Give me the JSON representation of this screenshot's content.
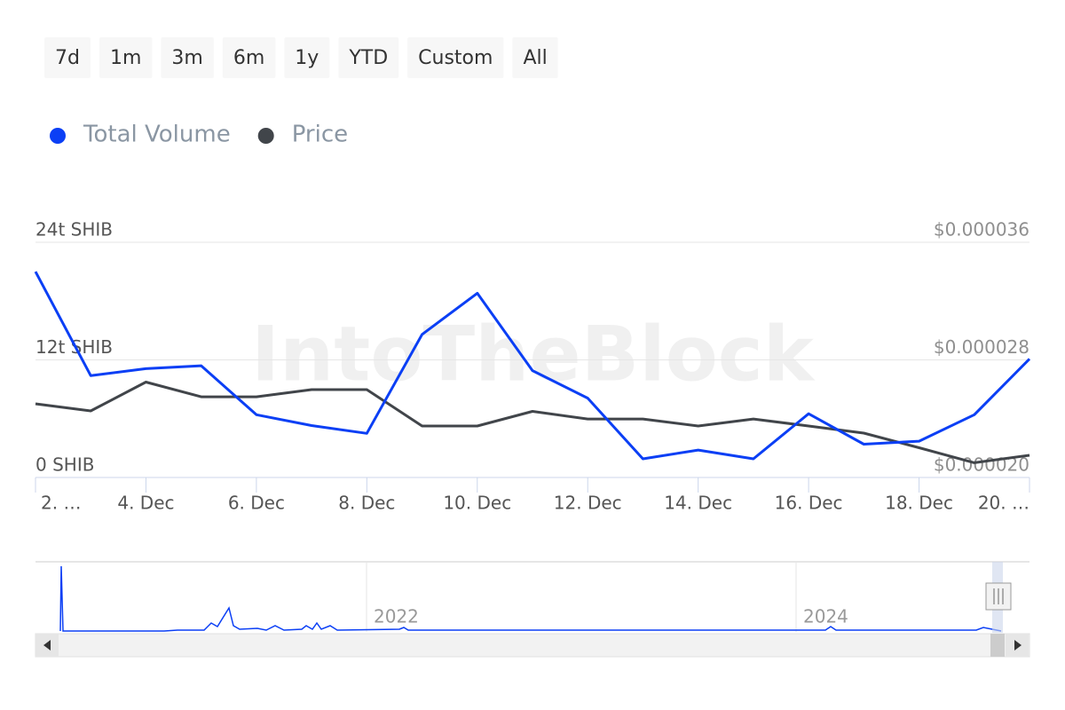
{
  "range_buttons": [
    "7d",
    "1m",
    "3m",
    "6m",
    "1y",
    "YTD",
    "Custom",
    "All"
  ],
  "watermark": "IntoTheBlock",
  "navigator": {
    "labels": [
      "2022",
      "2024"
    ]
  },
  "chart_data": {
    "type": "line",
    "x": [
      "2. …",
      null,
      "4. Dec",
      null,
      "6. Dec",
      null,
      "8. Dec",
      null,
      "10. Dec",
      null,
      "12. Dec",
      null,
      "14. Dec",
      null,
      "16. Dec",
      null,
      "18. Dec",
      null,
      "20. …"
    ],
    "series": [
      {
        "name": "Total Volume",
        "color": "#0b3ff5",
        "axis": "y",
        "values": [
          21.0,
          10.4,
          11.1,
          11.4,
          6.4,
          5.3,
          4.5,
          14.6,
          18.8,
          10.9,
          8.1,
          1.9,
          2.8,
          1.9,
          6.5,
          3.4,
          3.7,
          6.4,
          12.1
        ]
      },
      {
        "name": "Price",
        "color": "#41454a",
        "axis": "y2",
        "values": [
          2.501e-05,
          2.453e-05,
          2.649e-05,
          2.549e-05,
          2.549e-05,
          2.598e-05,
          2.598e-05,
          2.35e-05,
          2.35e-05,
          2.45e-05,
          2.398e-05,
          2.398e-05,
          2.35e-05,
          2.398e-05,
          2.35e-05,
          2.302e-05,
          2.202e-05,
          2.1e-05,
          2.151e-05
        ]
      }
    ],
    "ylim": [
      0,
      24
    ],
    "yticks": [
      {
        "value": 0,
        "label": "0 SHIB"
      },
      {
        "value": 12,
        "label": "12t SHIB"
      },
      {
        "value": 24,
        "label": "24t SHIB"
      }
    ],
    "y2lim": [
      2e-05,
      3.6e-05
    ],
    "y2ticks": [
      {
        "value": 2e-05,
        "label": "$0.000020"
      },
      {
        "value": 2.8e-05,
        "label": "$0.000028"
      },
      {
        "value": 3.6e-05,
        "label": "$0.000036"
      }
    ],
    "grid": true
  }
}
